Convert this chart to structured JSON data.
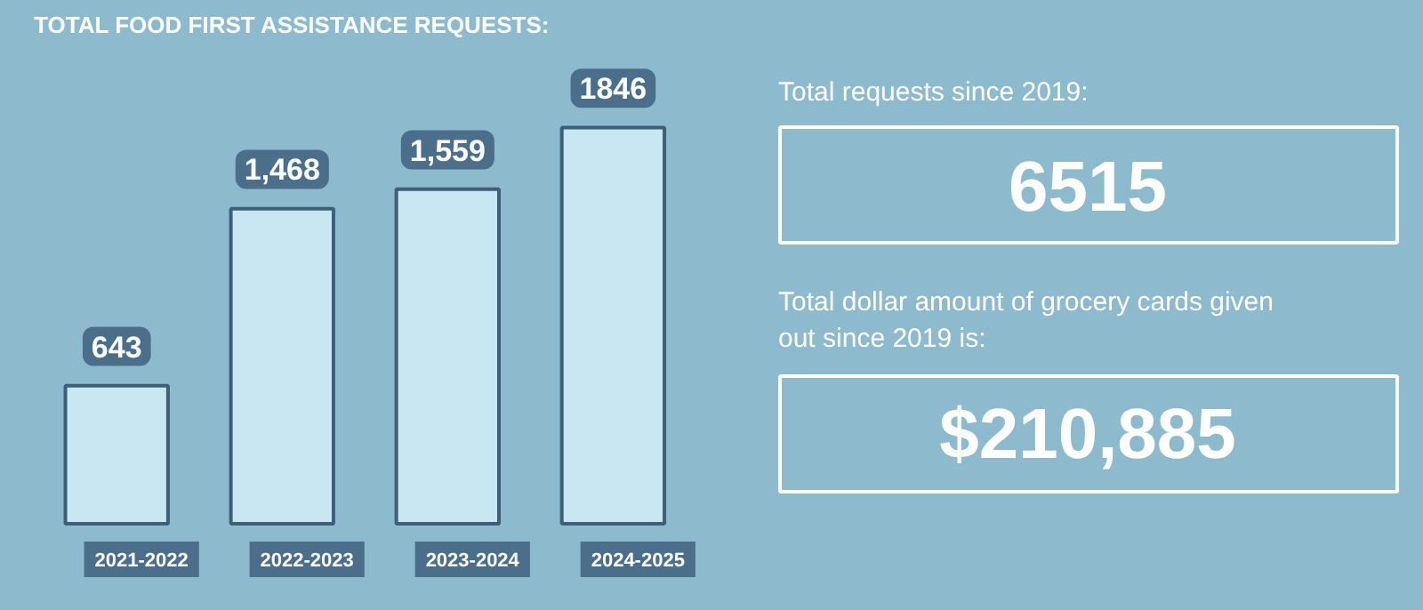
{
  "chart_data": [
    {
      "type": "bar",
      "title": "TOTAL FOOD FIRST ASSISTANCE REQUESTS:",
      "categories": [
        "2021-2022",
        "2022-2023",
        "2023-2024",
        "2024-2025"
      ],
      "values": [
        643,
        1468,
        1559,
        1846
      ],
      "color": "#c9e7f2",
      "value_labels": [
        "643",
        "1,468",
        "1,559",
        "1846"
      ]
    },
    {
      "type": "other",
      "annotations": [
        "Total requests since 2019:",
        "6515",
        "Total dollar amount of grocery cards given out since 2019 is:",
        "$210,885"
      ]
    }
  ]
}
